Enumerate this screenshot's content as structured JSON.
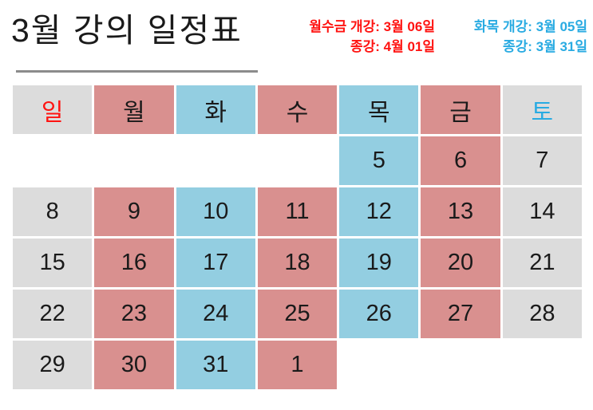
{
  "title": "3월 강의 일정표",
  "annotations": [
    {
      "id": "mon-wed-fri",
      "line1": "월수금 개강: 3월 06일",
      "line2": "종강: 4월 01일"
    },
    {
      "id": "tue-thu",
      "line1": "화목 개강: 3월 05일",
      "line2": "종강: 3월 31일"
    }
  ],
  "calendar": {
    "weekday_header": [
      {
        "label": "일",
        "cell": "gray",
        "text": "red"
      },
      {
        "label": "월",
        "cell": "pink",
        "text": "black"
      },
      {
        "label": "화",
        "cell": "blue",
        "text": "black"
      },
      {
        "label": "수",
        "cell": "pink",
        "text": "black"
      },
      {
        "label": "목",
        "cell": "blue",
        "text": "black"
      },
      {
        "label": "금",
        "cell": "pink",
        "text": "black"
      },
      {
        "label": "토",
        "cell": "gray",
        "text": "skyblue"
      }
    ],
    "rows": [
      [
        {
          "day": "",
          "cell": "empty"
        },
        {
          "day": "",
          "cell": "empty"
        },
        {
          "day": "",
          "cell": "empty"
        },
        {
          "day": "",
          "cell": "empty"
        },
        {
          "day": "5",
          "cell": "blue"
        },
        {
          "day": "6",
          "cell": "pink"
        },
        {
          "day": "7",
          "cell": "gray"
        }
      ],
      [
        {
          "day": "8",
          "cell": "gray"
        },
        {
          "day": "9",
          "cell": "pink"
        },
        {
          "day": "10",
          "cell": "blue"
        },
        {
          "day": "11",
          "cell": "pink"
        },
        {
          "day": "12",
          "cell": "blue"
        },
        {
          "day": "13",
          "cell": "pink"
        },
        {
          "day": "14",
          "cell": "gray"
        }
      ],
      [
        {
          "day": "15",
          "cell": "gray"
        },
        {
          "day": "16",
          "cell": "pink"
        },
        {
          "day": "17",
          "cell": "blue"
        },
        {
          "day": "18",
          "cell": "pink"
        },
        {
          "day": "19",
          "cell": "blue"
        },
        {
          "day": "20",
          "cell": "pink"
        },
        {
          "day": "21",
          "cell": "gray"
        }
      ],
      [
        {
          "day": "22",
          "cell": "gray"
        },
        {
          "day": "23",
          "cell": "pink"
        },
        {
          "day": "24",
          "cell": "blue"
        },
        {
          "day": "25",
          "cell": "pink"
        },
        {
          "day": "26",
          "cell": "blue"
        },
        {
          "day": "27",
          "cell": "pink"
        },
        {
          "day": "28",
          "cell": "gray"
        }
      ],
      [
        {
          "day": "29",
          "cell": "gray"
        },
        {
          "day": "30",
          "cell": "pink"
        },
        {
          "day": "31",
          "cell": "blue"
        },
        {
          "day": "1",
          "cell": "pink"
        },
        {
          "day": "",
          "cell": "empty"
        },
        {
          "day": "",
          "cell": "empty"
        },
        {
          "day": "",
          "cell": "empty"
        }
      ]
    ]
  },
  "colors": {
    "cell_gray": "#dcdcdc",
    "cell_pink": "#d9908f",
    "cell_blue": "#93cee1",
    "sunday_text": "#ff1311",
    "saturday_text": "#29abe2",
    "weekday_text": "#1a1a1a",
    "annotation_red": "#ff1311",
    "annotation_blue": "#29abe2",
    "title_text": "#1a1a1a",
    "underline": "#8c8c8c"
  }
}
